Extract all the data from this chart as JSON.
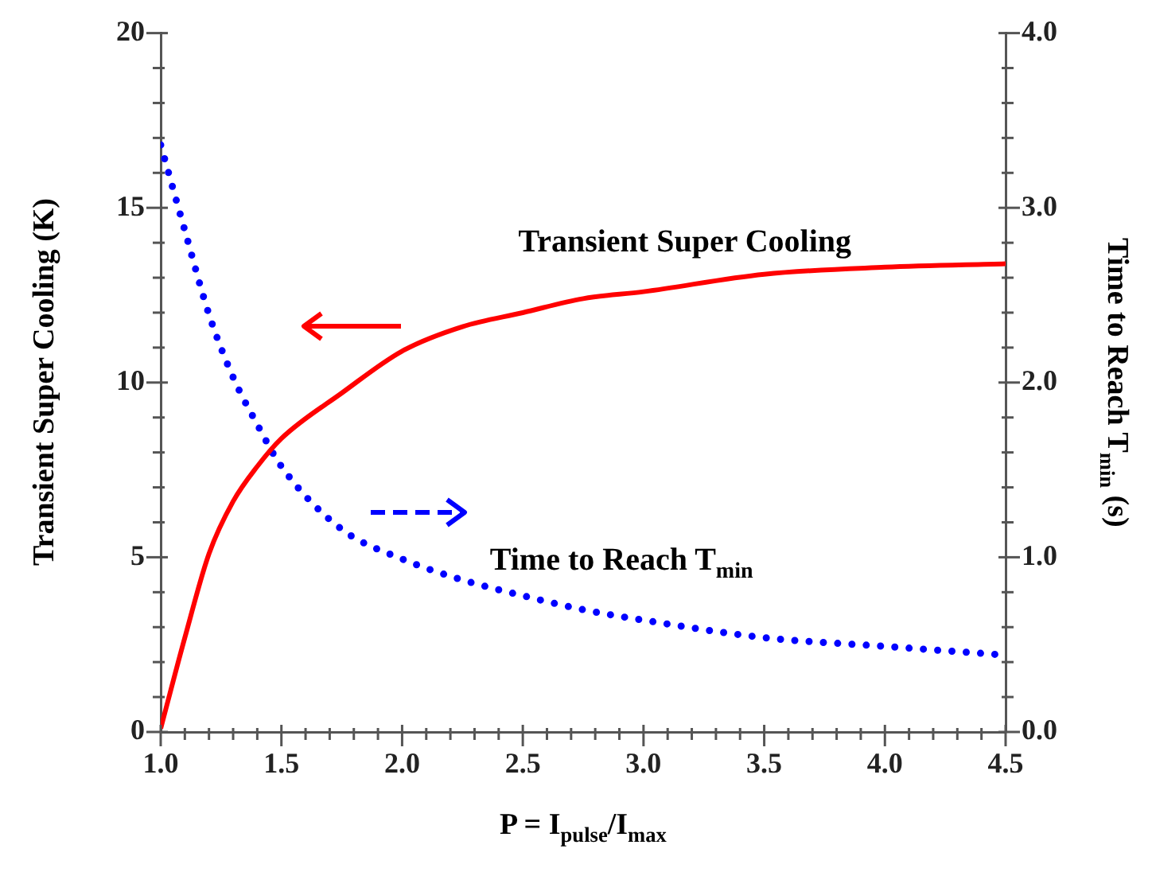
{
  "chart_data": {
    "type": "line",
    "x": [
      1.0,
      1.1,
      1.2,
      1.3,
      1.4,
      1.5,
      1.75,
      2.0,
      2.25,
      2.5,
      2.75,
      3.0,
      3.5,
      4.0,
      4.5
    ],
    "series": [
      {
        "name": "Transient Super Cooling",
        "color": "#ff0000",
        "line_style": "solid",
        "values": [
          0.1,
          2.7,
          5.1,
          6.6,
          7.6,
          8.4,
          9.7,
          10.9,
          11.6,
          12.0,
          12.4,
          12.6,
          13.1,
          13.3,
          13.4
        ]
      },
      {
        "name": "Time to Reach T$_{min}$",
        "color": "#0000ff",
        "line_style": "dotted",
        "axis": "y2",
        "values": [
          3.36,
          2.87,
          2.39,
          2.03,
          1.76,
          1.52,
          1.16,
          0.99,
          0.87,
          0.78,
          0.7,
          0.64,
          0.54,
          0.49,
          0.44
        ]
      }
    ],
    "xlabel": "P = I$_{pulse}$/I$_{max}$",
    "ylabel": "Transient Super Cooling (K)",
    "y2label": "Time to Reach T$_{min}$ (s)",
    "xlim": [
      1.0,
      4.5
    ],
    "xticks": [
      {
        "value": 1,
        "label": "1.0"
      },
      {
        "value": 1.1,
        "label": null
      },
      {
        "value": 1.2,
        "label": null
      },
      {
        "value": 1.3,
        "label": null
      },
      {
        "value": 1.4,
        "label": null
      },
      {
        "value": 1.5,
        "label": "1.5"
      },
      {
        "value": 1.6,
        "label": null
      },
      {
        "value": 1.7,
        "label": null
      },
      {
        "value": 1.8,
        "label": null
      },
      {
        "value": 1.9,
        "label": null
      },
      {
        "value": 2,
        "label": "2.0"
      },
      {
        "value": 2.1,
        "label": null
      },
      {
        "value": 2.2,
        "label": null
      },
      {
        "value": 2.3,
        "label": null
      },
      {
        "value": 2.4,
        "label": null
      },
      {
        "value": 2.5,
        "label": "2.5"
      },
      {
        "value": 2.6,
        "label": null
      },
      {
        "value": 2.7,
        "label": null
      },
      {
        "value": 2.8,
        "label": null
      },
      {
        "value": 2.9,
        "label": null
      },
      {
        "value": 3,
        "label": "3.0"
      },
      {
        "value": 3.1,
        "label": null
      },
      {
        "value": 3.2,
        "label": null
      },
      {
        "value": 3.3,
        "label": null
      },
      {
        "value": 3.4,
        "label": null
      },
      {
        "value": 3.5,
        "label": "3.5"
      },
      {
        "value": 3.6,
        "label": null
      },
      {
        "value": 3.7,
        "label": null
      },
      {
        "value": 3.8,
        "label": null
      },
      {
        "value": 3.9,
        "label": null
      },
      {
        "value": 4,
        "label": "4.0"
      },
      {
        "value": 4.1,
        "label": null
      },
      {
        "value": 4.2,
        "label": null
      },
      {
        "value": 4.3,
        "label": null
      },
      {
        "value": 4.4,
        "label": null
      },
      {
        "value": 4.5,
        "label": "4.5"
      }
    ],
    "ylim": [
      0,
      20
    ],
    "yticks": [
      0,
      {
        "value": 1,
        "label": null
      },
      {
        "value": 2,
        "label": null
      },
      {
        "value": 3,
        "label": null
      },
      {
        "value": 4,
        "label": null
      },
      5,
      {
        "value": 6,
        "label": null
      },
      {
        "value": 7,
        "label": null
      },
      {
        "value": 8,
        "label": null
      },
      {
        "value": 9,
        "label": null
      },
      10,
      {
        "value": 11,
        "label": null
      },
      {
        "value": 12,
        "label": null
      },
      {
        "value": 13,
        "label": null
      },
      {
        "value": 14,
        "label": null
      },
      15,
      {
        "value": 16,
        "label": null
      },
      {
        "value": 17,
        "label": null
      },
      {
        "value": 18,
        "label": null
      },
      {
        "value": 19,
        "label": null
      },
      20
    ],
    "y2lim": [
      0,
      4
    ],
    "y2ticks": [
      {
        "value": 0,
        "label": "0.0"
      },
      {
        "value": 0.2,
        "label": null
      },
      {
        "value": 0.4,
        "label": null
      },
      {
        "value": 0.6,
        "label": null
      },
      {
        "value": 0.8,
        "label": null
      },
      {
        "value": 1,
        "label": "1.0"
      },
      {
        "value": 1.2,
        "label": null
      },
      {
        "value": 1.4,
        "label": null
      },
      {
        "value": 1.6,
        "label": null
      },
      {
        "value": 1.8,
        "label": null
      },
      {
        "value": 2,
        "label": "2.0"
      },
      {
        "value": 2.2,
        "label": null
      },
      {
        "value": 2.4,
        "label": null
      },
      {
        "value": 2.6,
        "label": null
      },
      {
        "value": 2.8,
        "label": null
      },
      {
        "value": 3,
        "label": "3.0"
      },
      {
        "value": 3.2,
        "label": null
      },
      {
        "value": 3.4,
        "label": null
      },
      {
        "value": 3.6,
        "label": null
      },
      {
        "value": 3.8,
        "label": null
      },
      {
        "value": 4,
        "label": "4.0"
      }
    ],
    "grid": false,
    "legend": false,
    "marker": "none"
  }
}
